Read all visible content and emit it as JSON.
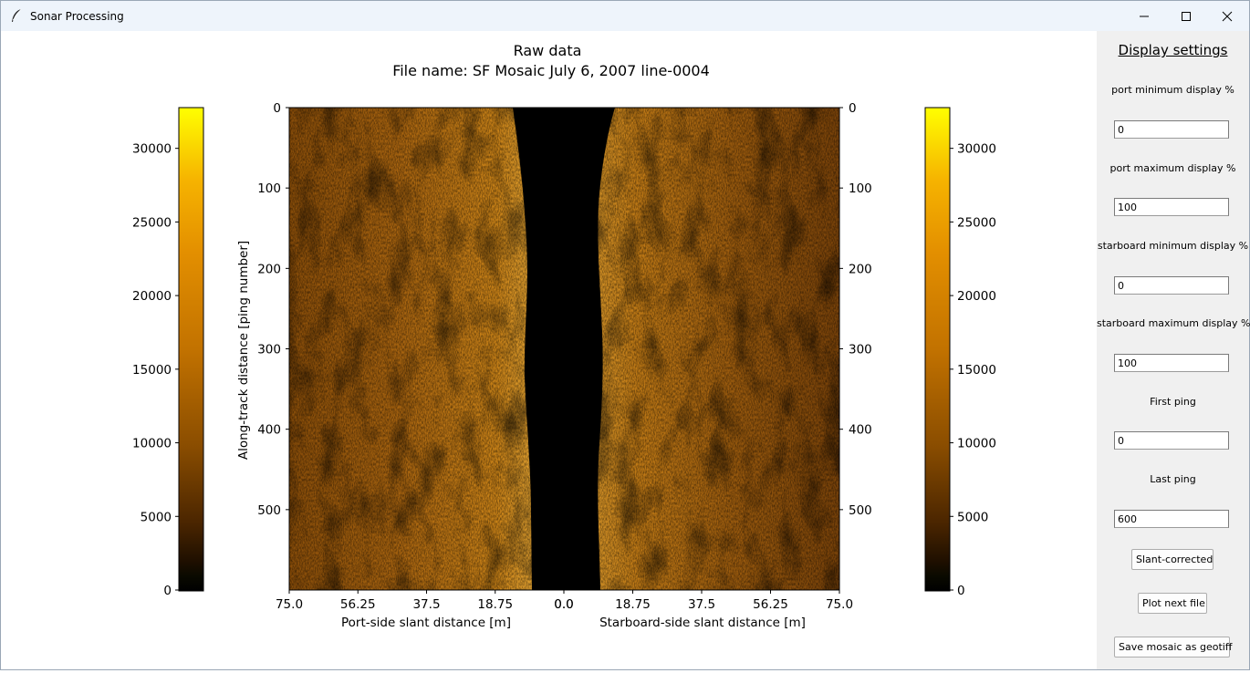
{
  "window": {
    "title": "Sonar Processing",
    "minimize_icon": "minimize-icon",
    "maximize_icon": "maximize-icon",
    "close_icon": "close-icon",
    "app_icon": "feather-icon"
  },
  "plot": {
    "title_line1": "Raw data",
    "title_line2": "File name: SF Mosaic July 6, 2007 line-0004",
    "ylabel": "Along-track distance [ping number]",
    "xlabel_port": "Port-side slant distance [m]",
    "xlabel_starboard": "Starboard-side slant distance [m]",
    "y_ticks": [
      "0",
      "100",
      "200",
      "300",
      "400",
      "500"
    ],
    "x_ticks_port": [
      "75.0",
      "56.25",
      "37.5",
      "18.75",
      "0.0"
    ],
    "x_ticks_starboard": [
      "0.0",
      "18.75",
      "37.5",
      "56.25",
      "75.0"
    ],
    "colorbar_ticks": [
      "0",
      "5000",
      "10000",
      "15000",
      "20000",
      "25000",
      "30000"
    ],
    "colors": {
      "dark": "#000000",
      "mid": "#c77600",
      "bright": "#ffff00"
    }
  },
  "chart_data": {
    "type": "heatmap",
    "title": "Raw data\nFile name: SF Mosaic July 6, 2007 line-0004",
    "ylabel": "Along-track distance [ping number]",
    "xlabel_port": "Port-side slant distance [m]",
    "xlabel_starboard": "Starboard-side slant distance [m]",
    "ylim": [
      600,
      0
    ],
    "xlim_port": [
      75.0,
      0.0
    ],
    "xlim_starboard": [
      0.0,
      75.0
    ],
    "colorbar_range": [
      0,
      32767
    ],
    "colormap": "afmhot-like (black → brown → orange → yellow)"
  },
  "sidebar": {
    "title": "Display settings",
    "port_min_label": "port minimum display %",
    "port_min_value": "0",
    "port_max_label": "port maximum display %",
    "port_max_value": "100",
    "stbd_min_label": "starboard minimum display %",
    "stbd_min_value": "0",
    "stbd_max_label": "starboard maximum display %",
    "stbd_max_value": "100",
    "first_ping_label": "First ping",
    "first_ping_value": "0",
    "last_ping_label": "Last ping",
    "last_ping_value": "600",
    "slant_button": "Slant-corrected",
    "next_button": "Plot next file",
    "save_button": "Save mosaic as geotiff"
  }
}
